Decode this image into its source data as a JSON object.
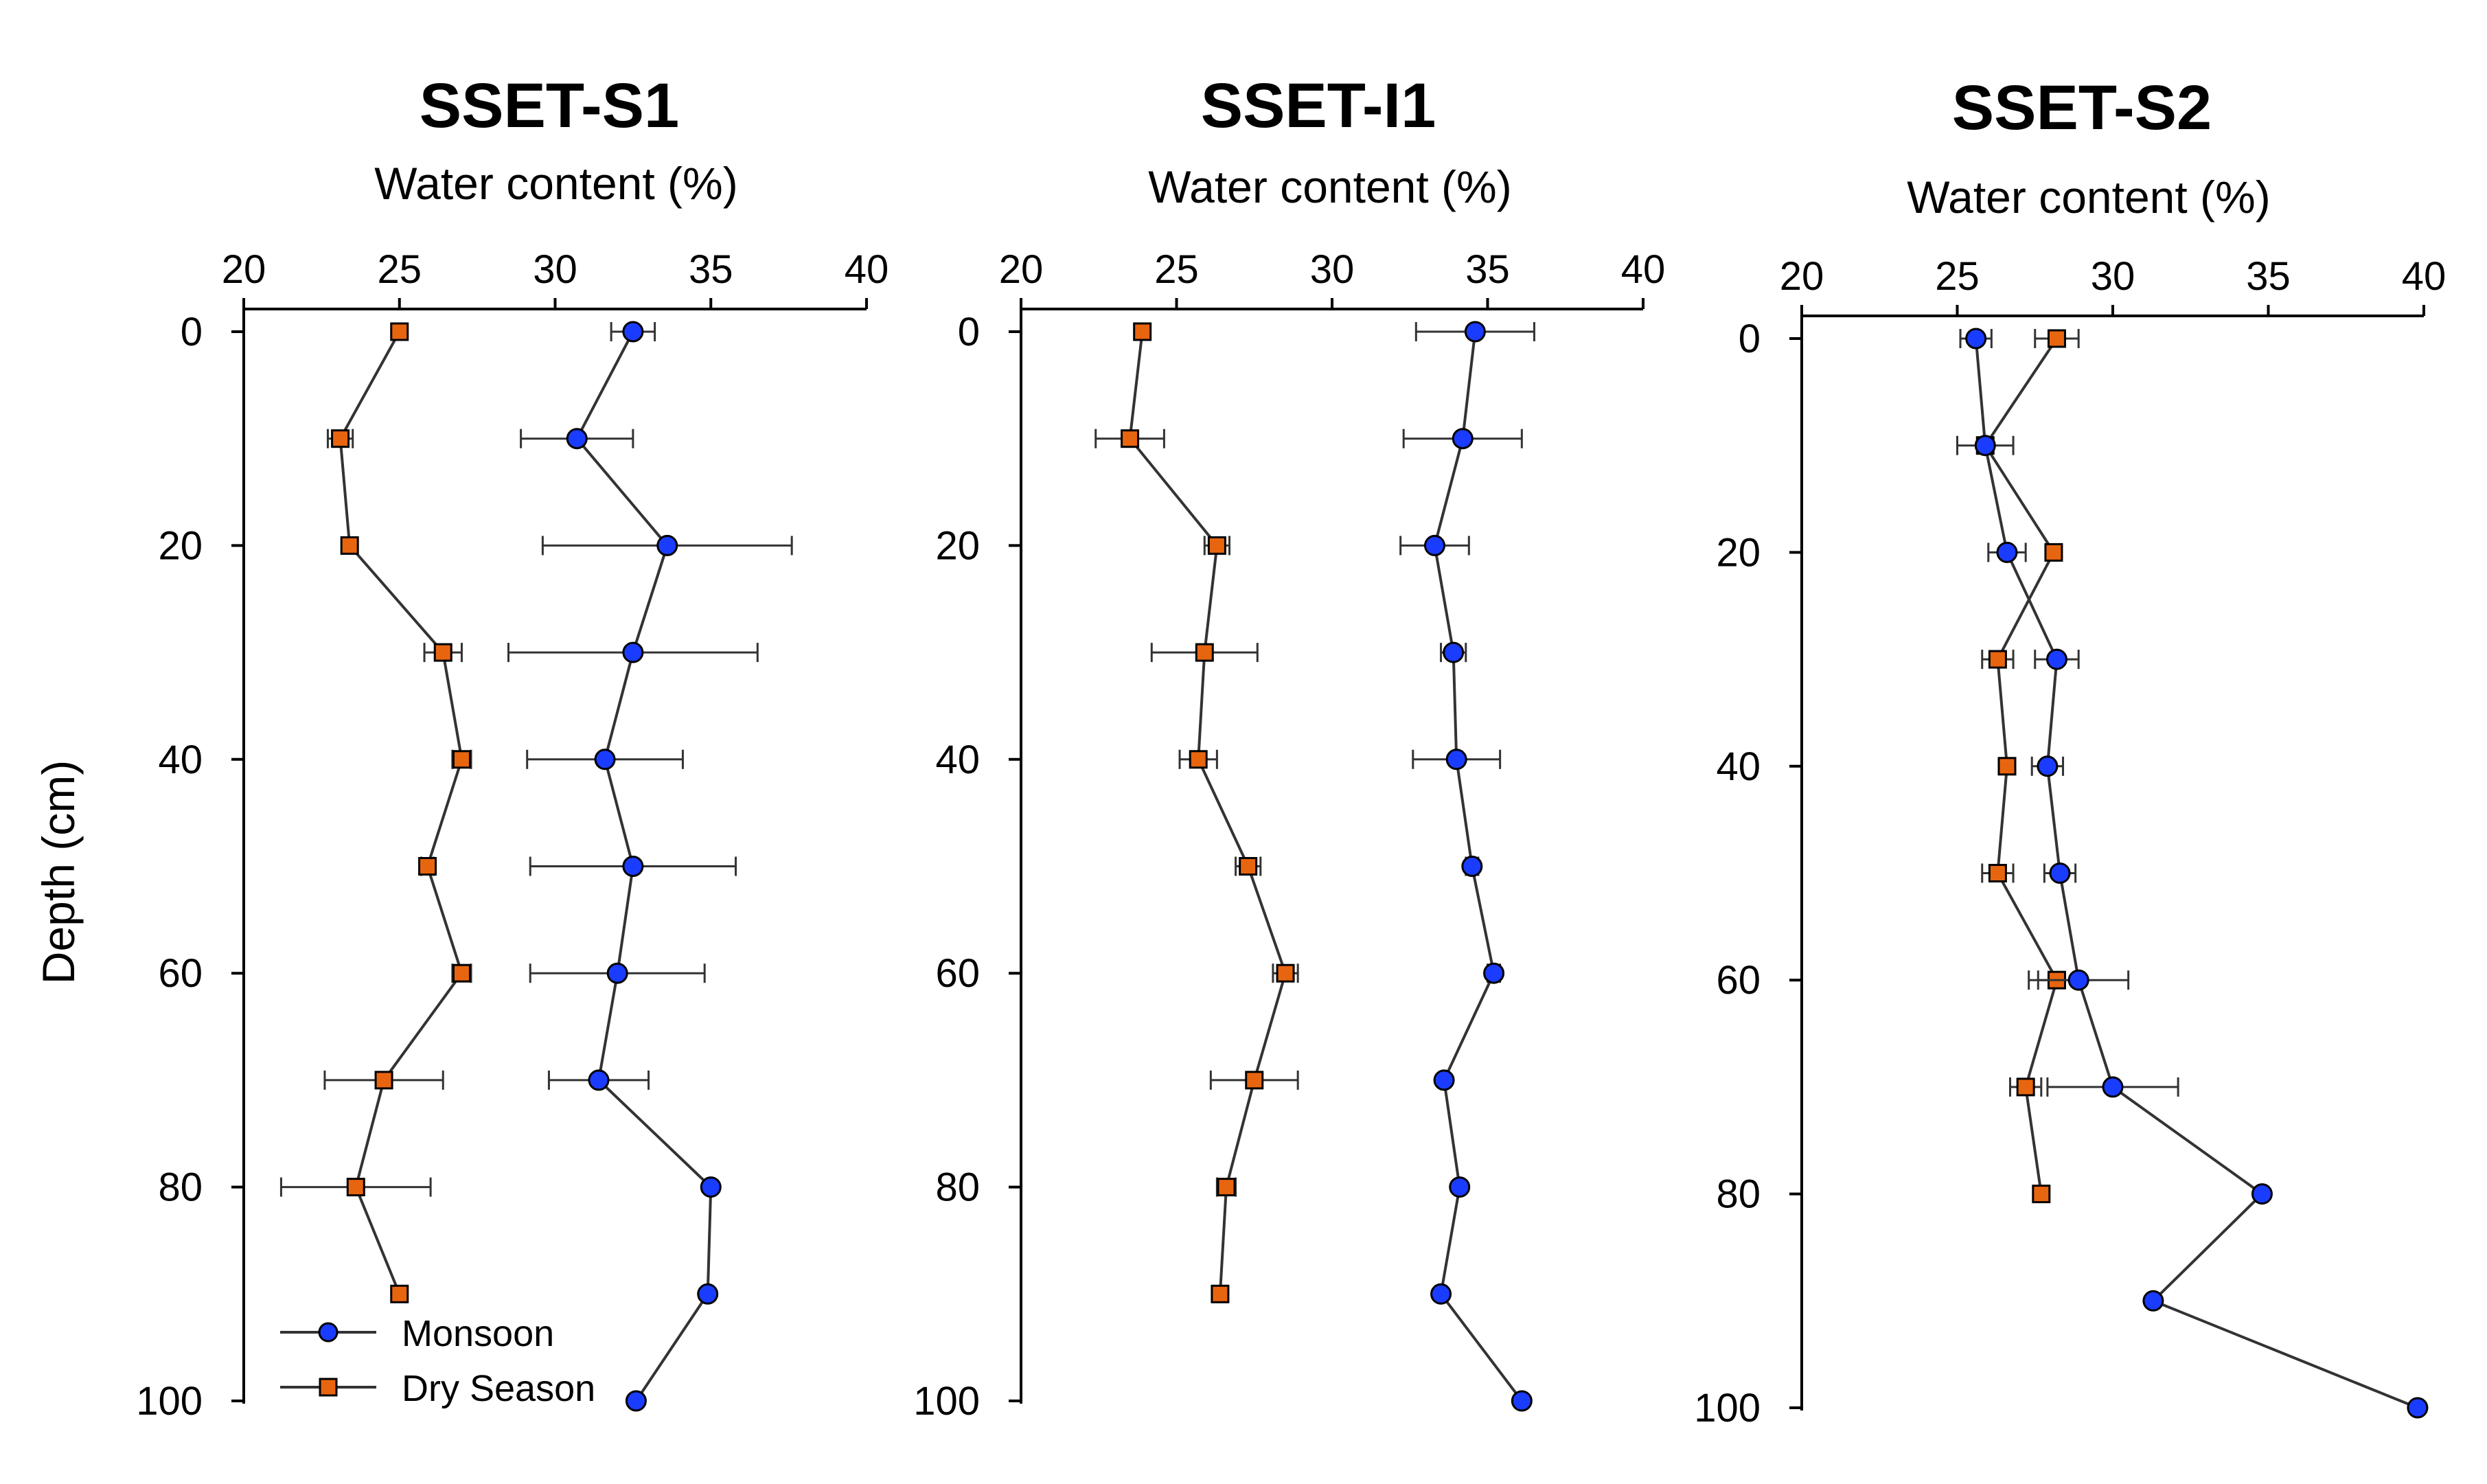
{
  "figure": {
    "ylabel": "Depth (cm)",
    "legend": {
      "position": "bottom-left of first panel",
      "entries": [
        {
          "label": "Monsoon",
          "marker": "circle",
          "color": "#1a3cff"
        },
        {
          "label": "Dry Season",
          "marker": "square",
          "color": "#e8650f"
        }
      ]
    },
    "colors": {
      "monsoon": "#1a3cff",
      "dry": "#e8650f",
      "line": "#333333",
      "axis": "#000000"
    }
  },
  "chart_data": [
    {
      "type": "line",
      "title": "SSET-S1",
      "xlabel": "Water content (%)",
      "ylabel": "Depth (cm)",
      "xlim": [
        20,
        40
      ],
      "ylim": [
        100,
        0
      ],
      "xticks": [
        "20",
        "25",
        "30",
        "35",
        "40"
      ],
      "yticks": [
        "0",
        "20",
        "40",
        "60",
        "80",
        "100"
      ],
      "series": [
        {
          "name": "Monsoon",
          "points": [
            {
              "depth": 0,
              "value": 32.5,
              "err": 0.7
            },
            {
              "depth": 10,
              "value": 30.7,
              "err": 1.8
            },
            {
              "depth": 20,
              "value": 33.6,
              "err": 4.0
            },
            {
              "depth": 30,
              "value": 32.5,
              "err": 4.0
            },
            {
              "depth": 40,
              "value": 31.6,
              "err": 2.5
            },
            {
              "depth": 50,
              "value": 32.5,
              "err": 3.3
            },
            {
              "depth": 60,
              "value": 32.0,
              "err": 2.8
            },
            {
              "depth": 70,
              "value": 31.4,
              "err": 1.6
            },
            {
              "depth": 80,
              "value": 35.0,
              "err": 0
            },
            {
              "depth": 90,
              "value": 34.9,
              "err": 0
            },
            {
              "depth": 100,
              "value": 32.6,
              "err": 0
            }
          ]
        },
        {
          "name": "Dry Season",
          "points": [
            {
              "depth": 0,
              "value": 25.0,
              "err": 0
            },
            {
              "depth": 10,
              "value": 23.1,
              "err": 0.4
            },
            {
              "depth": 20,
              "value": 23.4,
              "err": 0
            },
            {
              "depth": 30,
              "value": 26.4,
              "err": 0.6
            },
            {
              "depth": 40,
              "value": 27.0,
              "err": 0.3
            },
            {
              "depth": 50,
              "value": 25.9,
              "err": 0.2
            },
            {
              "depth": 60,
              "value": 27.0,
              "err": 0.3
            },
            {
              "depth": 70,
              "value": 24.5,
              "err": 1.9
            },
            {
              "depth": 80,
              "value": 23.6,
              "err": 2.4
            },
            {
              "depth": 90,
              "value": 25.0,
              "err": 0
            }
          ]
        }
      ]
    },
    {
      "type": "line",
      "title": "SSET-I1",
      "xlabel": "Water content (%)",
      "ylabel": "Depth (cm)",
      "xlim": [
        20,
        40
      ],
      "ylim": [
        100,
        0
      ],
      "xticks": [
        "20",
        "25",
        "30",
        "35",
        "40"
      ],
      "yticks": [
        "0",
        "20",
        "40",
        "60",
        "80",
        "100"
      ],
      "series": [
        {
          "name": "Monsoon",
          "points": [
            {
              "depth": 0,
              "value": 34.6,
              "err": 1.9
            },
            {
              "depth": 10,
              "value": 34.2,
              "err": 1.9
            },
            {
              "depth": 20,
              "value": 33.3,
              "err": 1.1
            },
            {
              "depth": 30,
              "value": 33.9,
              "err": 0.4
            },
            {
              "depth": 40,
              "value": 34.0,
              "err": 1.4
            },
            {
              "depth": 50,
              "value": 34.5,
              "err": 0.2
            },
            {
              "depth": 60,
              "value": 35.2,
              "err": 0.2
            },
            {
              "depth": 70,
              "value": 33.6,
              "err": 0
            },
            {
              "depth": 80,
              "value": 34.1,
              "err": 0
            },
            {
              "depth": 90,
              "value": 33.5,
              "err": 0
            },
            {
              "depth": 100,
              "value": 36.1,
              "err": 0
            }
          ]
        },
        {
          "name": "Dry Season",
          "points": [
            {
              "depth": 0,
              "value": 23.9,
              "err": 0
            },
            {
              "depth": 10,
              "value": 23.5,
              "err": 1.1
            },
            {
              "depth": 20,
              "value": 26.3,
              "err": 0.4
            },
            {
              "depth": 30,
              "value": 25.9,
              "err": 1.7
            },
            {
              "depth": 40,
              "value": 25.7,
              "err": 0.6
            },
            {
              "depth": 50,
              "value": 27.3,
              "err": 0.4
            },
            {
              "depth": 60,
              "value": 28.5,
              "err": 0.4
            },
            {
              "depth": 70,
              "value": 27.5,
              "err": 1.4
            },
            {
              "depth": 80,
              "value": 26.6,
              "err": 0.3
            },
            {
              "depth": 90,
              "value": 26.4,
              "err": 0
            }
          ]
        }
      ]
    },
    {
      "type": "line",
      "title": "SSET-S2",
      "xlabel": "Water content (%)",
      "ylabel": "Depth (cm)",
      "xlim": [
        20,
        40
      ],
      "ylim": [
        100,
        0
      ],
      "xticks": [
        "20",
        "25",
        "30",
        "35",
        "40"
      ],
      "yticks": [
        "0",
        "20",
        "40",
        "60",
        "80",
        "100"
      ],
      "series": [
        {
          "name": "Monsoon",
          "points": [
            {
              "depth": 0,
              "value": 25.6,
              "err": 0.5
            },
            {
              "depth": 10,
              "value": 25.9,
              "err": 0.9
            },
            {
              "depth": 20,
              "value": 26.6,
              "err": 0.6
            },
            {
              "depth": 30,
              "value": 28.2,
              "err": 0.7
            },
            {
              "depth": 40,
              "value": 27.9,
              "err": 0.5
            },
            {
              "depth": 50,
              "value": 28.3,
              "err": 0.5
            },
            {
              "depth": 60,
              "value": 28.9,
              "err": 1.6
            },
            {
              "depth": 70,
              "value": 30.0,
              "err": 2.1
            },
            {
              "depth": 80,
              "value": 34.8,
              "err": 0
            },
            {
              "depth": 90,
              "value": 31.3,
              "err": 0
            },
            {
              "depth": 100,
              "value": 39.8,
              "err": 0
            }
          ]
        },
        {
          "name": "Dry Season",
          "points": [
            {
              "depth": 0,
              "value": 28.2,
              "err": 0.7
            },
            {
              "depth": 10,
              "value": 25.9,
              "err": 0
            },
            {
              "depth": 20,
              "value": 28.1,
              "err": 0
            },
            {
              "depth": 30,
              "value": 26.3,
              "err": 0.5
            },
            {
              "depth": 40,
              "value": 26.6,
              "err": 0
            },
            {
              "depth": 50,
              "value": 26.3,
              "err": 0.5
            },
            {
              "depth": 60,
              "value": 28.2,
              "err": 0.6
            },
            {
              "depth": 70,
              "value": 27.2,
              "err": 0.5
            },
            {
              "depth": 80,
              "value": 27.7,
              "err": 0
            }
          ]
        }
      ]
    }
  ]
}
